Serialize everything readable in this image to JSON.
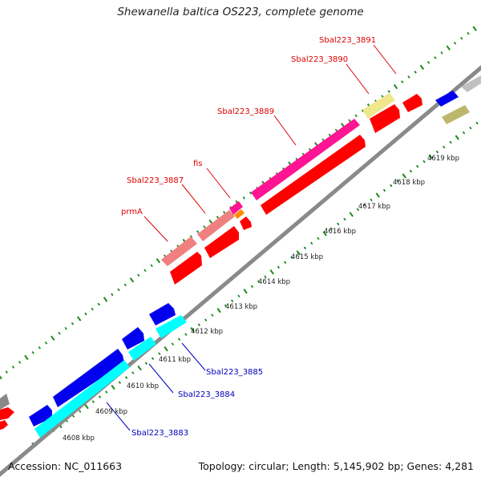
{
  "title": "Shewanella baltica OS223, complete genome",
  "footer": {
    "accession": "Accession: NC_011663",
    "summary": "Topology: circular; Length: 5,145,902 bp; Genes: 4,281"
  },
  "colors": {
    "backbone": "#8a8a8a",
    "tick": "#1a8a1a",
    "ruler_label": "#222222",
    "label_top": "#dd0000",
    "label_bottom": "#0000bb",
    "cds_forward": "#ff0000",
    "cds_reverse": "#0000ee",
    "hit_pink": "#ff1493",
    "hit_salmon": "#f08080",
    "hit_cyan": "#00ffff",
    "hit_khaki": "#f0e68c",
    "hit_olive": "#bdb76b",
    "hit_orange": "#ff8c00",
    "hit_gray": "#c0c0c0"
  },
  "ruler": {
    "unit": "kbp",
    "labels": [
      "4608 kbp",
      "4609 kbp",
      "4610 kbp",
      "4611 kbp",
      "4612 kbp",
      "4613 kbp",
      "4614 kbp",
      "4615 kbp",
      "4616 kbp",
      "4617 kbp",
      "4618 kbp",
      "4619 kbp"
    ]
  },
  "gene_labels_top": [
    "prmA",
    "Sbal223_3887",
    "fis",
    "Sbal223_3889",
    "Sbal223_3890",
    "Sbal223_3891"
  ],
  "gene_labels_bottom": [
    "Sbal223_3883",
    "Sbal223_3884",
    "Sbal223_3885"
  ]
}
